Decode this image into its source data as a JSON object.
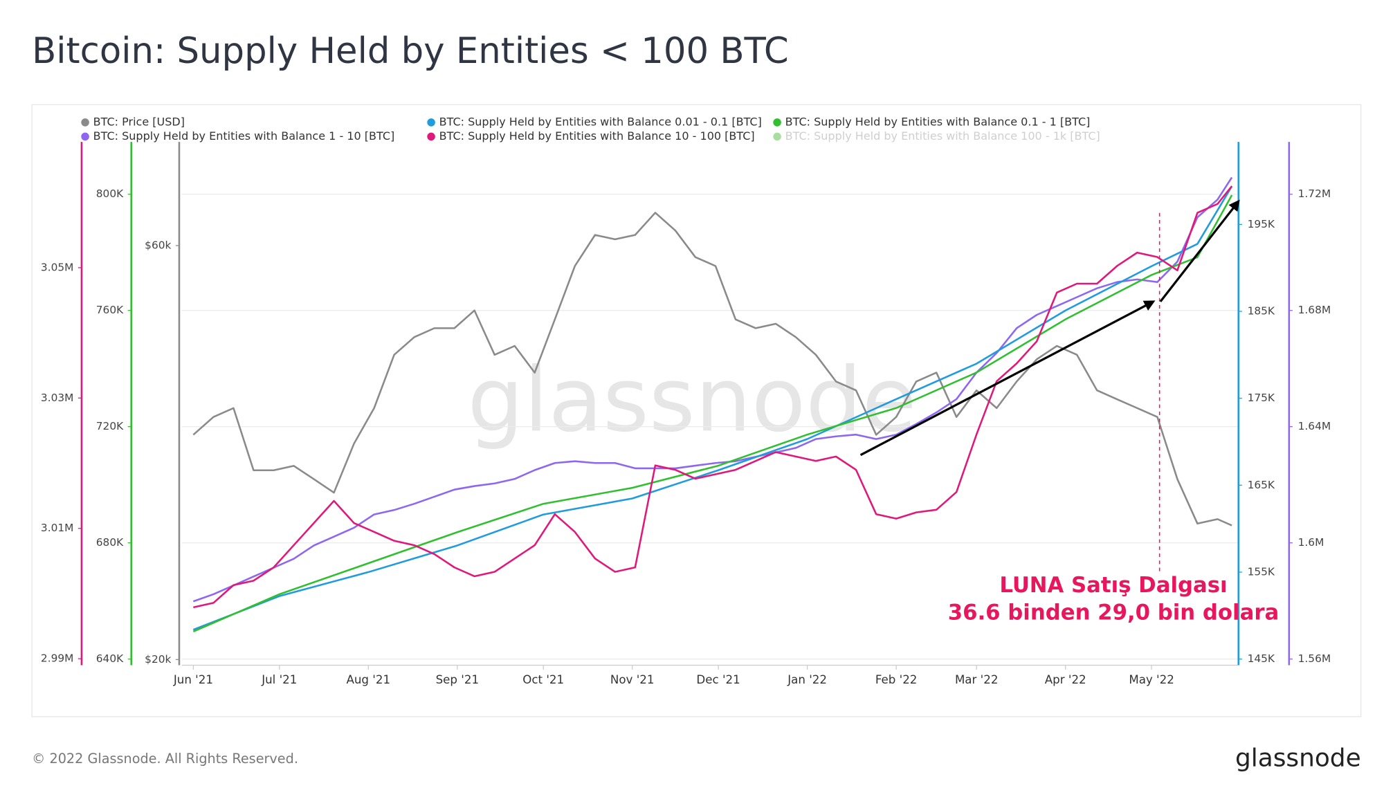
{
  "chart_data": {
    "type": "line",
    "title": "Bitcoin: Supply Held by Entities < 100 BTC",
    "watermark": "glassnode",
    "xlim": [
      -4,
      364
    ],
    "xticks": [
      {
        "value": 0,
        "label": "Jun '21"
      },
      {
        "value": 30,
        "label": "Jul '21"
      },
      {
        "value": 61,
        "label": "Aug '21"
      },
      {
        "value": 92,
        "label": "Sep '21"
      },
      {
        "value": 122,
        "label": "Oct '21"
      },
      {
        "value": 153,
        "label": "Nov '21"
      },
      {
        "value": 183,
        "label": "Dec '21"
      },
      {
        "value": 214,
        "label": "Jan '22"
      },
      {
        "value": 245,
        "label": "Feb '22"
      },
      {
        "value": 273,
        "label": "Mar '22"
      },
      {
        "value": 304,
        "label": "Apr '22"
      },
      {
        "value": 334,
        "label": "May '22"
      }
    ],
    "series": [
      {
        "name": "BTC: Price [USD]",
        "color": "#8a8a8a",
        "log": true,
        "x": [
          0,
          7,
          14,
          21,
          28,
          35,
          42,
          49,
          56,
          63,
          70,
          77,
          84,
          91,
          98,
          105,
          112,
          119,
          126,
          133,
          140,
          147,
          154,
          161,
          168,
          175,
          182,
          189,
          196,
          203,
          210,
          217,
          224,
          231,
          238,
          245,
          252,
          259,
          266,
          273,
          280,
          287,
          294,
          301,
          308,
          315,
          322,
          329,
          336,
          343,
          350,
          357,
          362
        ],
        "values": [
          36310,
          38070,
          38980,
          33050,
          33050,
          33440,
          32280,
          31150,
          35470,
          38980,
          44900,
          47060,
          48190,
          48190,
          50510,
          44900,
          45970,
          42830,
          49330,
          56830,
          61720,
          61000,
          61720,
          65470,
          62450,
          58190,
          56830,
          49330,
          48190,
          48760,
          47060,
          44900,
          41830,
          40860,
          36310,
          38070,
          41830,
          42830,
          38070,
          40860,
          38980,
          41830,
          44370,
          45970,
          44900,
          40860,
          39900,
          38980,
          38070,
          32280,
          28690,
          29030,
          28550
        ],
        "ylim": [
          19700,
          79000
        ],
        "yticks": [
          {
            "value": 20000,
            "label": "$20k"
          },
          {
            "value": 60000,
            "label": "$60k"
          }
        ]
      },
      {
        "name": "BTC: Supply Held by Entities with Balance 0.01 - 0.1 [BTC]",
        "color": "#1f9bde",
        "x": [
          0,
          30,
          61,
          92,
          122,
          153,
          183,
          214,
          245,
          273,
          304,
          334,
          350,
          362
        ],
        "values": [
          148370,
          152240,
          155000,
          158060,
          161630,
          163470,
          166730,
          170310,
          174900,
          178980,
          185100,
          190200,
          192760,
          199390
        ],
        "ylim": [
          144290,
          204490
        ],
        "yticks": [
          {
            "value": 145000,
            "label": "145K"
          },
          {
            "value": 155000,
            "label": "155K"
          },
          {
            "value": 165000,
            "label": "165K"
          },
          {
            "value": 175000,
            "label": "175K"
          },
          {
            "value": 185000,
            "label": "185K"
          },
          {
            "value": 195000,
            "label": "195K"
          }
        ]
      },
      {
        "name": "BTC: Supply Held by Entities with Balance 0.1 - 1 [BTC]",
        "color": "#2fbf2f",
        "x": [
          0,
          30,
          61,
          92,
          122,
          153,
          183,
          214,
          245,
          273,
          304,
          334,
          350,
          362
        ],
        "values": [
          649470,
          662290,
          672980,
          683660,
          693430,
          698930,
          706560,
          717250,
          726410,
          738630,
          756950,
          772210,
          778320,
          799690
        ],
        "ylim": [
          637860,
          818010
        ],
        "yticks": [
          {
            "value": 640000,
            "label": "640K"
          },
          {
            "value": 680000,
            "label": "680K"
          },
          {
            "value": 720000,
            "label": "720K"
          },
          {
            "value": 760000,
            "label": "760K"
          },
          {
            "value": 800000,
            "label": "800K"
          }
        ]
      },
      {
        "name": "BTC: Supply Held by Entities with Balance 1 - 10 [BTC]",
        "color": "#8d67f0",
        "x": [
          0,
          7,
          14,
          21,
          28,
          35,
          42,
          49,
          56,
          63,
          70,
          77,
          84,
          91,
          98,
          105,
          112,
          119,
          126,
          133,
          140,
          147,
          154,
          161,
          168,
          175,
          182,
          189,
          196,
          203,
          210,
          217,
          224,
          231,
          238,
          245,
          252,
          259,
          266,
          273,
          280,
          287,
          294,
          301,
          308,
          315,
          322,
          329,
          336,
          343,
          350,
          357,
          362
        ],
        "values": [
          1579850,
          1582290,
          1585340,
          1588400,
          1591450,
          1594500,
          1599080,
          1602140,
          1605190,
          1609770,
          1611300,
          1613430,
          1615880,
          1618320,
          1619540,
          1620460,
          1621980,
          1625040,
          1627480,
          1628090,
          1627480,
          1627480,
          1625650,
          1625650,
          1625650,
          1626560,
          1627480,
          1628090,
          1629620,
          1631140,
          1632670,
          1635720,
          1636640,
          1637250,
          1635720,
          1637250,
          1640920,
          1644880,
          1649460,
          1658620,
          1665340,
          1673890,
          1678470,
          1681530,
          1684580,
          1687630,
          1689770,
          1690690,
          1689770,
          1696790,
          1712060,
          1718170,
          1725800
        ],
        "ylim": [
          1557860,
          1738010
        ],
        "yticks": [
          {
            "value": 1560000,
            "label": "1.56M"
          },
          {
            "value": 1600000,
            "label": "1.6M"
          },
          {
            "value": 1640000,
            "label": "1.64M"
          },
          {
            "value": 1680000,
            "label": "1.68M"
          },
          {
            "value": 1720000,
            "label": "1.72M"
          }
        ]
      },
      {
        "name": "BTC: Supply Held by Entities with Balance 10 - 100 [BTC]",
        "color": "#e0187a",
        "x": [
          0,
          7,
          14,
          21,
          28,
          35,
          42,
          49,
          56,
          63,
          70,
          77,
          84,
          91,
          98,
          105,
          112,
          119,
          126,
          133,
          140,
          147,
          154,
          161,
          168,
          175,
          182,
          189,
          196,
          203,
          210,
          217,
          224,
          231,
          238,
          245,
          252,
          259,
          266,
          273,
          280,
          287,
          294,
          301,
          308,
          315,
          322,
          329,
          336,
          343,
          350,
          357,
          362
        ],
        "values": [
          2997890,
          2998570,
          3001290,
          3001970,
          3004010,
          3007410,
          3010820,
          3014220,
          3010820,
          3009460,
          3008100,
          3007410,
          3006050,
          3004010,
          3002650,
          3003330,
          3005370,
          3007410,
          3012180,
          3009460,
          3005370,
          3003330,
          3004010,
          3019660,
          3018980,
          3017620,
          3018300,
          3018980,
          3020340,
          3021700,
          3021020,
          3020340,
          3021020,
          3018980,
          3012180,
          3011500,
          3012450,
          3012860,
          3015580,
          3024420,
          3032580,
          3035310,
          3038710,
          3046190,
          3047550,
          3047550,
          3050270,
          3052310,
          3051630,
          3049590,
          3058430,
          3059790,
          3062520
        ],
        "ylim": [
          2989000,
          3069300
        ],
        "yticks": [
          {
            "value": 2990000,
            "label": "2.99M"
          },
          {
            "value": 3010000,
            "label": "3.01M"
          },
          {
            "value": 3030000,
            "label": "3.03M"
          },
          {
            "value": 3050000,
            "label": "3.05M"
          }
        ]
      }
    ],
    "inactive_series": [
      {
        "name": "BTC: Supply Held by Entities with Balance 100 - 1k [BTC]",
        "color": "#a8dfa0"
      }
    ],
    "annotation": [
      "LUNA Satış Dalgası",
      "36.6 binden 29,0 bin dolara"
    ],
    "annotation_color": "#e8175d"
  },
  "footer": {
    "copyright": "© 2022 Glassnode. All Rights Reserved.",
    "logo": "glassnode"
  }
}
